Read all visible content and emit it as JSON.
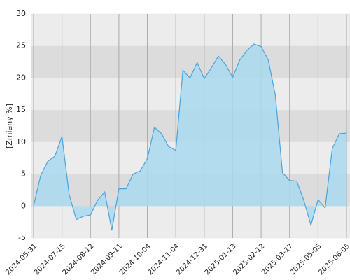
{
  "chart_data": {
    "type": "area",
    "y_label": "[Zmiany %]",
    "categories": [
      "2024-05-31",
      null,
      null,
      null,
      "2024-07-15",
      null,
      null,
      null,
      "2024-08-12",
      null,
      null,
      null,
      "2024-09-11",
      null,
      null,
      null,
      "2024-10-04",
      null,
      null,
      null,
      "2024-11-04",
      null,
      null,
      null,
      "2024-12-31",
      null,
      null,
      null,
      "2025-01-13",
      null,
      null,
      null,
      "2025-02-12",
      null,
      null,
      null,
      "2025-03-17",
      null,
      null,
      null,
      "2025-05-05",
      null,
      null,
      null,
      "2025-06-05"
    ],
    "values": [
      0,
      4.8,
      7,
      7.8,
      10.9,
      1.8,
      -2.1,
      -1.6,
      -1.4,
      0.9,
      2.2,
      -3.8,
      2.7,
      2.7,
      5,
      5.5,
      7.4,
      12.3,
      11.3,
      9.3,
      8.7,
      21.2,
      20,
      22.4,
      19.9,
      21.6,
      23.4,
      22.1,
      20.1,
      22.8,
      24.3,
      25.3,
      24.9,
      22.8,
      17.3,
      5.2,
      4,
      3.9,
      0.9,
      -3,
      1,
      -0.3,
      9,
      11.3,
      11.4
    ],
    "color": "#4aa3df",
    "fill": "#a9daee",
    "ylim": [
      -5,
      30
    ],
    "yticks": [
      -5,
      0,
      5,
      10,
      15,
      20,
      25,
      30
    ],
    "grid": true
  }
}
